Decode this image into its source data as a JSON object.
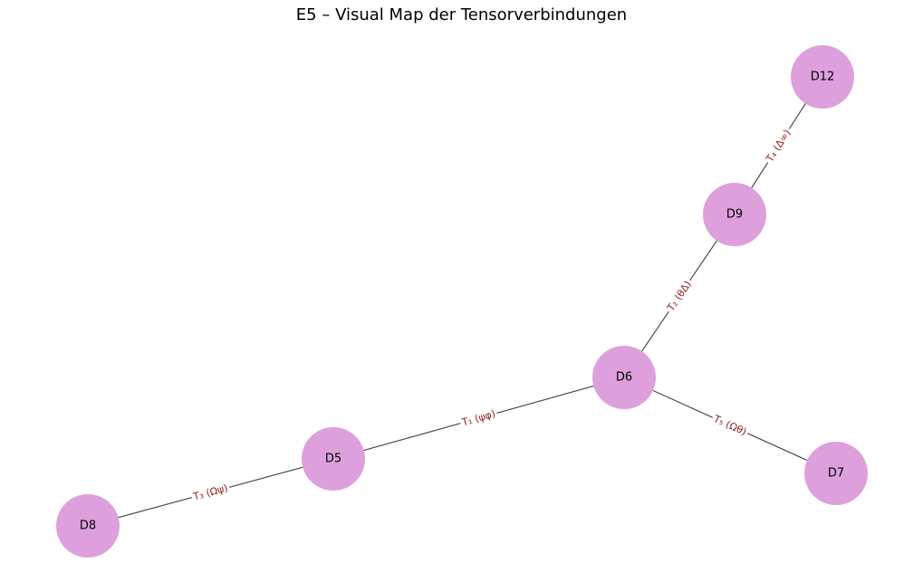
{
  "title": "E5 – Visual Map der Tensorverbindungen",
  "colors": {
    "node_fill": "#dda0dd",
    "edge_stroke": "#4d4d4d",
    "edge_label": "#8b1a1a",
    "node_text": "#000000"
  },
  "nodes": [
    {
      "id": "D12",
      "label": "D12"
    },
    {
      "id": "D9",
      "label": "D9"
    },
    {
      "id": "D6",
      "label": "D6"
    },
    {
      "id": "D5",
      "label": "D5"
    },
    {
      "id": "D7",
      "label": "D7"
    },
    {
      "id": "D8",
      "label": "D8"
    }
  ],
  "edges": [
    {
      "source": "D9",
      "target": "D12",
      "label": "T₄ (Δ∞)"
    },
    {
      "source": "D6",
      "target": "D9",
      "label": "T₂ (θΔ)"
    },
    {
      "source": "D5",
      "target": "D6",
      "label": "T₁ (ψφ)"
    },
    {
      "source": "D6",
      "target": "D7",
      "label": "T₅ (Ωθ)"
    },
    {
      "source": "D8",
      "target": "D5",
      "label": "T₃ (Ωψ)"
    }
  ]
}
